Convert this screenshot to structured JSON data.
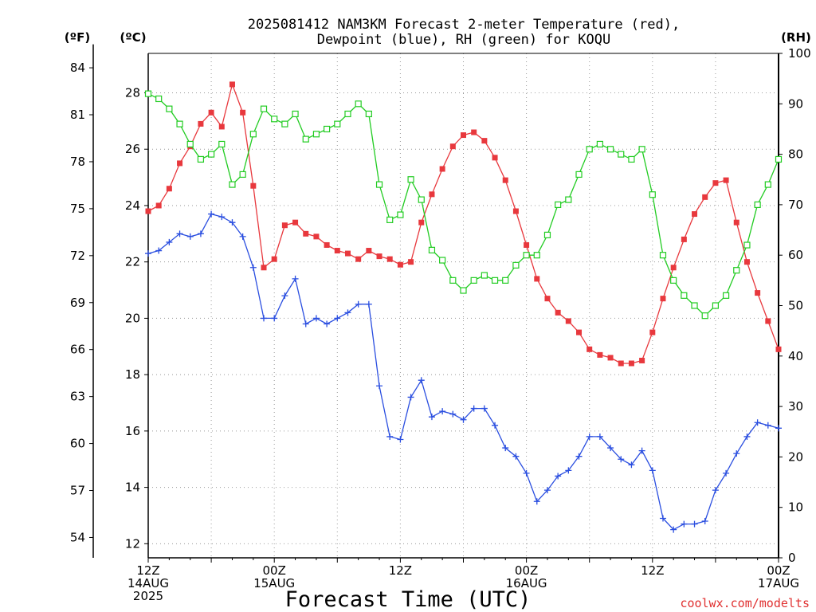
{
  "chart_data": {
    "type": "line",
    "title_line1": "2025081412 NAM3KM Forecast 2-meter Temperature (red),",
    "title_line2": "Dewpoint (blue), RH (green) for KOQU",
    "xlabel": "Forecast Time (UTC)",
    "credit": "coolwx.com/modelts",
    "left_f_label": "(ºF)",
    "left_c_label": "(ºC)",
    "right_label": "(RH)",
    "x_ticks": [
      {
        "hour": 0,
        "l1": "12Z",
        "l2": "14AUG",
        "l3": "2025"
      },
      {
        "hour": 12,
        "l1": "00Z",
        "l2": "15AUG",
        "l3": ""
      },
      {
        "hour": 24,
        "l1": "12Z",
        "l2": "",
        "l3": ""
      },
      {
        "hour": 36,
        "l1": "00Z",
        "l2": "16AUG",
        "l3": ""
      },
      {
        "hour": 48,
        "l1": "12Z",
        "l2": "",
        "l3": ""
      },
      {
        "hour": 60,
        "l1": "00Z",
        "l2": "17AUG",
        "l3": ""
      }
    ],
    "c_ticks": [
      12,
      14,
      16,
      18,
      20,
      22,
      24,
      26,
      28
    ],
    "f_ticks": [
      54,
      57,
      60,
      63,
      66,
      69,
      72,
      75,
      78,
      81,
      84
    ],
    "rh_ticks": [
      0,
      10,
      20,
      30,
      40,
      50,
      60,
      70,
      80,
      90,
      100
    ],
    "xlim_hours": [
      0,
      60
    ],
    "ylim_c": [
      11.5,
      29.4
    ],
    "ylim_rh": [
      0,
      100
    ],
    "grid": true,
    "series": [
      {
        "name": "Temperature",
        "unit": "C",
        "color": "#e8383d",
        "marker": "filled-square",
        "values": [
          23.8,
          24.0,
          24.6,
          25.5,
          26.1,
          26.9,
          27.3,
          26.8,
          28.3,
          27.3,
          24.7,
          21.8,
          22.1,
          23.3,
          23.4,
          23.0,
          22.9,
          22.6,
          22.4,
          22.3,
          22.1,
          22.4,
          22.2,
          22.1,
          21.9,
          22.0,
          23.4,
          24.4,
          25.3,
          26.1,
          26.5,
          26.6,
          26.3,
          25.7,
          24.9,
          23.8,
          22.6,
          21.4,
          20.7,
          20.2,
          19.9,
          19.5,
          18.9,
          18.7,
          18.6,
          18.4,
          18.4,
          18.5,
          19.5,
          20.7,
          21.8,
          22.8,
          23.7,
          24.3,
          24.8,
          24.9,
          23.4,
          22.0,
          20.9,
          19.9,
          18.9
        ]
      },
      {
        "name": "Dewpoint",
        "unit": "C",
        "color": "#2a4ee0",
        "marker": "plus",
        "values": [
          22.3,
          22.4,
          22.7,
          23.0,
          22.9,
          23.0,
          23.7,
          23.6,
          23.4,
          22.9,
          21.8,
          20.0,
          20.0,
          20.8,
          21.4,
          19.8,
          20.0,
          19.8,
          20.0,
          20.2,
          20.5,
          20.5,
          17.6,
          15.8,
          15.7,
          17.2,
          17.8,
          16.5,
          16.7,
          16.6,
          16.4,
          16.8,
          16.8,
          16.2,
          15.4,
          15.1,
          14.5,
          13.5,
          13.9,
          14.4,
          14.6,
          15.1,
          15.8,
          15.8,
          15.4,
          15.0,
          14.8,
          15.3,
          14.6,
          12.9,
          12.5,
          12.7,
          12.7,
          12.8,
          13.9,
          14.5,
          15.2,
          15.8,
          16.3,
          16.2,
          16.1
        ]
      },
      {
        "name": "RH",
        "unit": "%",
        "color": "#22cc22",
        "marker": "open-square",
        "values": [
          92,
          91,
          89,
          86,
          82,
          79,
          80,
          82,
          74,
          76,
          84,
          89,
          87,
          86,
          88,
          83,
          84,
          85,
          86,
          88,
          90,
          88,
          74,
          67,
          68,
          75,
          71,
          61,
          59,
          55,
          53,
          55,
          56,
          55,
          55,
          58,
          60,
          60,
          64,
          70,
          71,
          76,
          81,
          82,
          81,
          80,
          79,
          81,
          72,
          60,
          55,
          52,
          50,
          48,
          50,
          52,
          57,
          62,
          70,
          74,
          79
        ]
      }
    ]
  }
}
